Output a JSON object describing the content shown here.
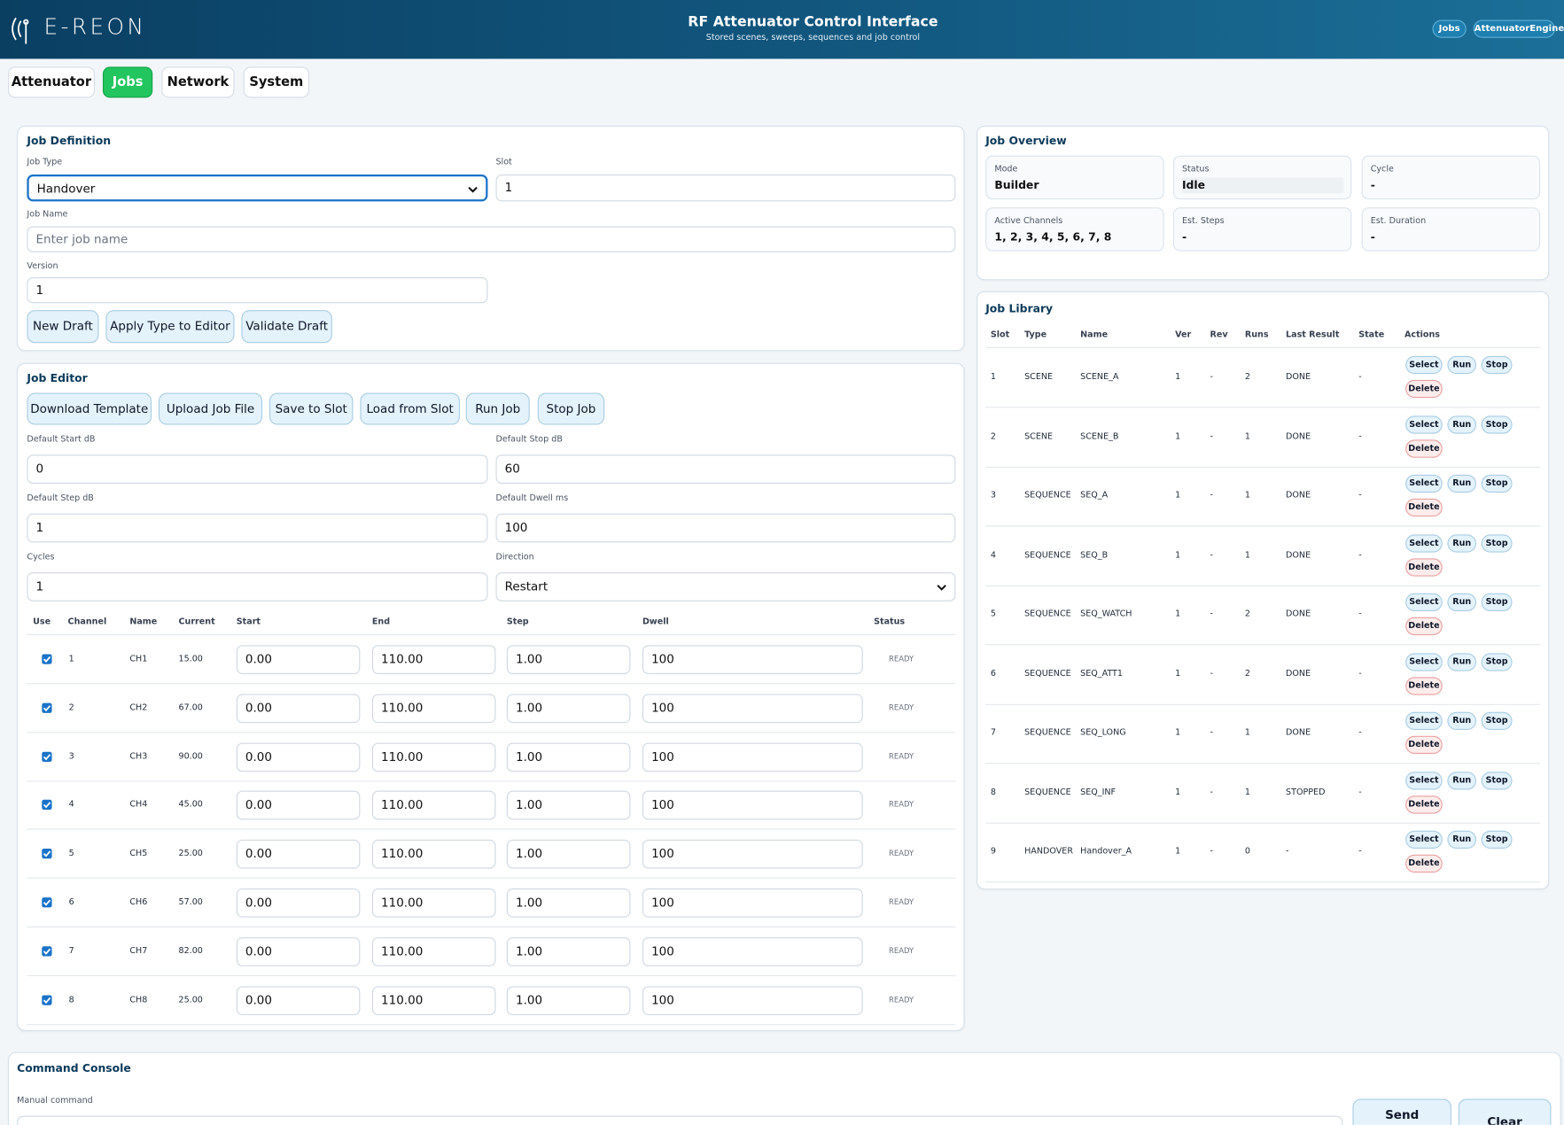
{
  "header": {
    "logo": "E-REON",
    "title": "RF Attenuator Control Interface",
    "subtitle": "Stored scenes, sweeps, sequences and job control",
    "badges": [
      "Jobs",
      "AttenuatorEngine"
    ]
  },
  "tabs": [
    {
      "label": "Attenuator",
      "active": false
    },
    {
      "label": "Jobs",
      "active": true
    },
    {
      "label": "Network",
      "active": false
    },
    {
      "label": "System",
      "active": false
    }
  ],
  "job_definition": {
    "title": "Job Definition",
    "job_type_label": "Job Type",
    "job_type": "Handover",
    "slot_label": "Slot",
    "slot": "1",
    "job_name_label": "Job Name",
    "job_name_placeholder": "Enter job name",
    "version_label": "Version",
    "version": "1",
    "buttons": [
      "New Draft",
      "Apply Type to Editor",
      "Validate Draft"
    ]
  },
  "job_editor": {
    "title": "Job Editor",
    "buttons": [
      "Download Template",
      "Upload Job File",
      "Save to Slot",
      "Load from Slot",
      "Run Job",
      "Stop Job"
    ],
    "fields": [
      {
        "label": "Default Start dB",
        "value": "0"
      },
      {
        "label": "Default Stop dB",
        "value": "60"
      },
      {
        "label": "Default Step dB",
        "value": "1"
      },
      {
        "label": "Default Dwell ms",
        "value": "100"
      },
      {
        "label": "Cycles",
        "value": "1"
      },
      {
        "label": "Direction",
        "value": "Restart",
        "select": true
      }
    ],
    "columns": [
      "Use",
      "Channel",
      "Name",
      "Current",
      "Start",
      "End",
      "Step",
      "Dwell",
      "Status"
    ],
    "rows": [
      {
        "use": true,
        "channel": "1",
        "name": "CH1",
        "current": "15.00",
        "start": "0.00",
        "end": "110.00",
        "step": "1.00",
        "dwell": "100",
        "status": "READY"
      },
      {
        "use": true,
        "channel": "2",
        "name": "CH2",
        "current": "67.00",
        "start": "0.00",
        "end": "110.00",
        "step": "1.00",
        "dwell": "100",
        "status": "READY"
      },
      {
        "use": true,
        "channel": "3",
        "name": "CH3",
        "current": "90.00",
        "start": "0.00",
        "end": "110.00",
        "step": "1.00",
        "dwell": "100",
        "status": "READY"
      },
      {
        "use": true,
        "channel": "4",
        "name": "CH4",
        "current": "45.00",
        "start": "0.00",
        "end": "110.00",
        "step": "1.00",
        "dwell": "100",
        "status": "READY"
      },
      {
        "use": true,
        "channel": "5",
        "name": "CH5",
        "current": "25.00",
        "start": "0.00",
        "end": "110.00",
        "step": "1.00",
        "dwell": "100",
        "status": "READY"
      },
      {
        "use": true,
        "channel": "6",
        "name": "CH6",
        "current": "57.00",
        "start": "0.00",
        "end": "110.00",
        "step": "1.00",
        "dwell": "100",
        "status": "READY"
      },
      {
        "use": true,
        "channel": "7",
        "name": "CH7",
        "current": "82.00",
        "start": "0.00",
        "end": "110.00",
        "step": "1.00",
        "dwell": "100",
        "status": "READY"
      },
      {
        "use": true,
        "channel": "8",
        "name": "CH8",
        "current": "25.00",
        "start": "0.00",
        "end": "110.00",
        "step": "1.00",
        "dwell": "100",
        "status": "READY"
      }
    ]
  },
  "job_overview": {
    "title": "Job Overview",
    "cards": [
      {
        "label": "Mode",
        "value": "Builder"
      },
      {
        "label": "Status",
        "value": "Idle"
      },
      {
        "label": "Cycle",
        "value": "-"
      },
      {
        "label": "Active Channels",
        "value": "1, 2, 3, 4, 5, 6, 7, 8"
      },
      {
        "label": "Est. Steps",
        "value": "-"
      },
      {
        "label": "Est. Duration",
        "value": "-"
      }
    ]
  },
  "job_library": {
    "title": "Job Library",
    "columns": [
      "Slot",
      "Type",
      "Name",
      "Ver",
      "Rev",
      "Runs",
      "Last Result",
      "State",
      "Actions"
    ],
    "actions": [
      "Select",
      "Run",
      "Stop",
      "Delete"
    ],
    "rows": [
      {
        "slot": "1",
        "type": "SCENE",
        "name": "SCENE_A",
        "ver": "1",
        "rev": "-",
        "runs": "2",
        "last_result": "DONE",
        "state": "-"
      },
      {
        "slot": "2",
        "type": "SCENE",
        "name": "SCENE_B",
        "ver": "1",
        "rev": "-",
        "runs": "1",
        "last_result": "DONE",
        "state": "-"
      },
      {
        "slot": "3",
        "type": "SEQUENCE",
        "name": "SEQ_A",
        "ver": "1",
        "rev": "-",
        "runs": "1",
        "last_result": "DONE",
        "state": "-"
      },
      {
        "slot": "4",
        "type": "SEQUENCE",
        "name": "SEQ_B",
        "ver": "1",
        "rev": "-",
        "runs": "1",
        "last_result": "DONE",
        "state": "-"
      },
      {
        "slot": "5",
        "type": "SEQUENCE",
        "name": "SEQ_WATCH",
        "ver": "1",
        "rev": "-",
        "runs": "2",
        "last_result": "DONE",
        "state": "-"
      },
      {
        "slot": "6",
        "type": "SEQUENCE",
        "name": "SEQ_ATT1",
        "ver": "1",
        "rev": "-",
        "runs": "2",
        "last_result": "DONE",
        "state": "-"
      },
      {
        "slot": "7",
        "type": "SEQUENCE",
        "name": "SEQ_LONG",
        "ver": "1",
        "rev": "-",
        "runs": "1",
        "last_result": "DONE",
        "state": "-"
      },
      {
        "slot": "8",
        "type": "SEQUENCE",
        "name": "SEQ_INF",
        "ver": "1",
        "rev": "-",
        "runs": "1",
        "last_result": "STOPPED",
        "state": "-"
      },
      {
        "slot": "9",
        "type": "HANDOVER",
        "name": "Handover_A",
        "ver": "1",
        "rev": "-",
        "runs": "0",
        "last_result": "-",
        "state": "-"
      }
    ]
  },
  "command_console": {
    "title": "Command Console",
    "label": "Manual command",
    "buttons": [
      "Send",
      "Clear"
    ]
  }
}
